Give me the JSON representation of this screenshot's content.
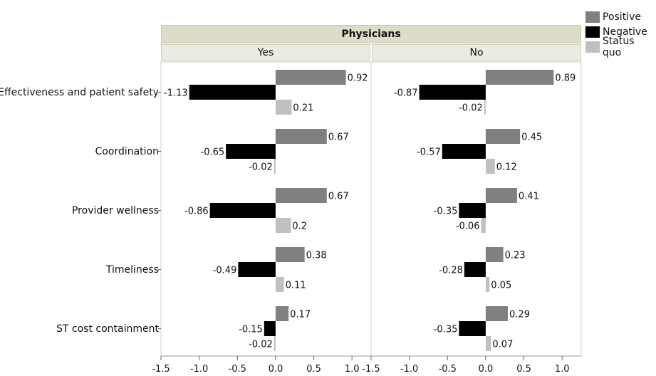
{
  "chart_data": {
    "type": "bar",
    "orientation": "horizontal",
    "title": "Physicians",
    "panels": [
      "Yes",
      "No"
    ],
    "categories": [
      "Effectiveness and patient safety",
      "Coordination",
      "Provider wellness",
      "Timeliness",
      "ST cost containment"
    ],
    "series": [
      {
        "name": "Positive",
        "color": "#808080",
        "values": {
          "Yes": [
            0.92,
            0.67,
            0.67,
            0.38,
            0.17
          ],
          "No": [
            0.89,
            0.45,
            0.41,
            0.23,
            0.29
          ]
        }
      },
      {
        "name": "Negative",
        "color": "#000000",
        "values": {
          "Yes": [
            -1.13,
            -0.65,
            -0.86,
            -0.49,
            -0.15
          ],
          "No": [
            -0.87,
            -0.57,
            -0.35,
            -0.28,
            -0.35
          ]
        }
      },
      {
        "name": "Status quo",
        "color": "#c0c0c0",
        "values": {
          "Yes": [
            0.21,
            -0.02,
            0.2,
            0.11,
            -0.02
          ],
          "No": [
            -0.02,
            0.12,
            -0.06,
            0.05,
            0.07
          ]
        }
      }
    ],
    "data_labels": {
      "Yes": [
        [
          "0.92",
          "-1.13",
          "0.21"
        ],
        [
          "0.67",
          "-0.65",
          "-0.02"
        ],
        [
          "0.67",
          "-0.86",
          "0.2"
        ],
        [
          "0.38",
          "-0.49",
          "0.11"
        ],
        [
          "0.17",
          "-0.15",
          "-0.02"
        ]
      ],
      "No": [
        [
          "0.89",
          "-0.87",
          "-0.02"
        ],
        [
          "0.45",
          "-0.57",
          "0.12"
        ],
        [
          "0.41",
          "-0.35",
          "-0.06"
        ],
        [
          "0.23",
          "-0.28",
          "0.05"
        ],
        [
          "0.29",
          "-0.35",
          "0.07"
        ]
      ]
    },
    "xlim": [
      -1.5,
      1.25
    ],
    "xticks": [
      -1.5,
      -1.0,
      -0.5,
      0.0,
      0.5,
      1.0
    ],
    "xtick_labels": [
      "-1.5",
      "-1.0",
      "-0.5",
      "0.0",
      "0.5",
      "1.0"
    ],
    "grid": false,
    "legend": "top-right"
  }
}
